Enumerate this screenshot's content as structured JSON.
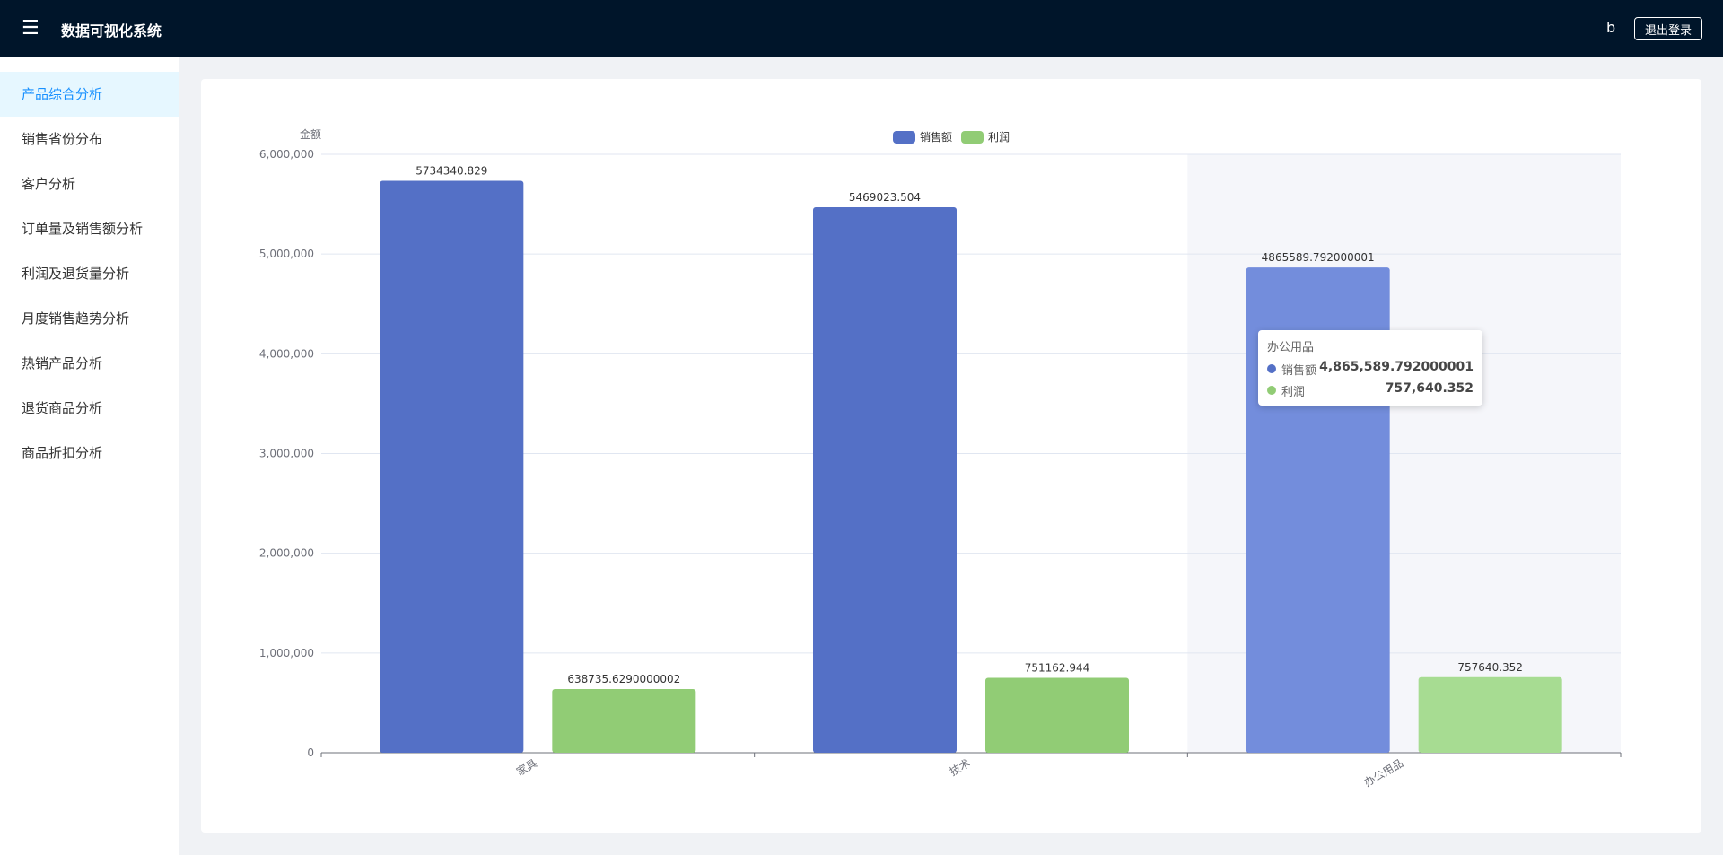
{
  "header": {
    "menu_icon": "hamburger-menu-icon",
    "title": "数据可视化系统",
    "username": "b",
    "logout_label": "退出登录"
  },
  "sidebar": {
    "items": [
      {
        "label": "产品综合分析",
        "active": true
      },
      {
        "label": "销售省份分布"
      },
      {
        "label": "客户分析"
      },
      {
        "label": "订单量及销售额分析"
      },
      {
        "label": "利润及退货量分析"
      },
      {
        "label": "月度销售趋势分析"
      },
      {
        "label": "热销产品分析"
      },
      {
        "label": "退货商品分析"
      },
      {
        "label": "商品折扣分析"
      }
    ]
  },
  "colors": {
    "header_bg": "#00152a",
    "accent": "#1890ff",
    "sales": "#5470c6",
    "profit": "#91cc75",
    "sales_highlight": "#738ddc",
    "profit_highlight": "#a7dc92"
  },
  "chart_data": {
    "type": "bar",
    "ylabel": "金额",
    "categories": [
      "家具",
      "技术",
      "办公用品"
    ],
    "series": [
      {
        "name": "销售额",
        "color": "#5470c6",
        "values": [
          5734340.829,
          5469023.504,
          4865589.792000001
        ],
        "labels": [
          "5734340.829",
          "5469023.504",
          "4865589.792000001"
        ]
      },
      {
        "name": "利润",
        "color": "#91cc75",
        "values": [
          638735.6290000002,
          751162.944,
          757640.352
        ],
        "labels": [
          "638735.6290000002",
          "751162.944",
          "757640.352"
        ]
      }
    ],
    "ylim": [
      0,
      6000000
    ],
    "yticks": [
      "0",
      "1,000,000",
      "2,000,000",
      "3,000,000",
      "4,000,000",
      "5,000,000",
      "6,000,000"
    ],
    "legend": "top-center",
    "grid": true,
    "highlighted_category": "办公用品"
  },
  "tooltip": {
    "title": "办公用品",
    "rows": [
      {
        "name": "销售额",
        "value": "4,865,589.792000001",
        "color": "#5470c6"
      },
      {
        "name": "利润",
        "value": "757,640.352",
        "color": "#91cc75"
      }
    ]
  }
}
